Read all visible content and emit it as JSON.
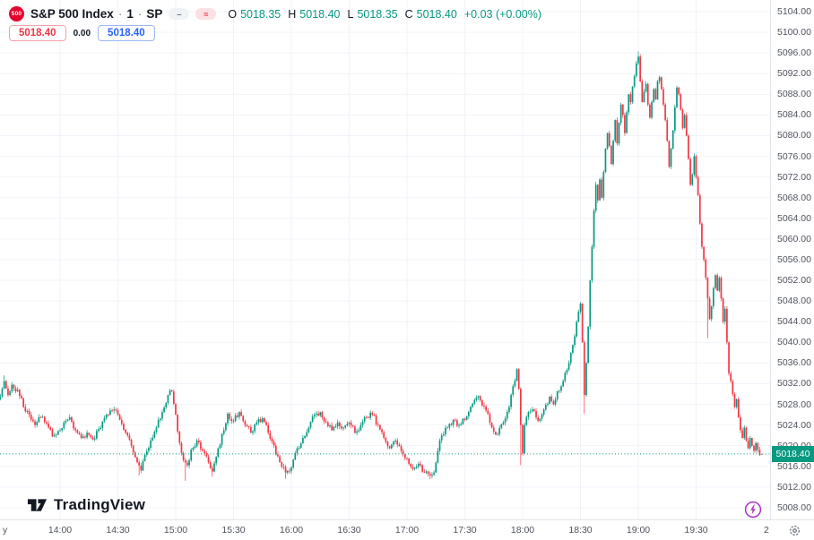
{
  "header": {
    "badge": "500",
    "symbol": "S&P 500 Index",
    "separator": "·",
    "interval": "1",
    "exchange": "SP",
    "flag_dash": "–",
    "flag_closed": "≈",
    "ohlc": {
      "open_label": "O",
      "open": "5018.35",
      "high_label": "H",
      "high": "5018.40",
      "low_label": "L",
      "low": "5018.35",
      "close_label": "C",
      "close": "5018.40",
      "change": "+0.03 (+0.00%)"
    },
    "sell_price": "5018.40",
    "spread": "0.00",
    "buy_price": "5018.40"
  },
  "watermark": "TradingView",
  "price_scale": {
    "current_label": "5018.40"
  },
  "chart_data": {
    "type": "candlestick",
    "symbol": "S&P 500 Index",
    "interval_minutes": 1,
    "last_price": 5018.4,
    "price_line": 5018.4,
    "last_candle": {
      "o": 5018.35,
      "h": 5018.4,
      "l": 5018.35,
      "c": 5018.4
    },
    "y_range": [
      5008,
      5104
    ],
    "y_tick_step": 4,
    "y_ticks": [
      "5104.00",
      "5100.00",
      "5096.00",
      "5092.00",
      "5088.00",
      "5084.00",
      "5080.00",
      "5076.00",
      "5072.00",
      "5068.00",
      "5064.00",
      "5060.00",
      "5056.00",
      "5052.00",
      "5048.00",
      "5044.00",
      "5040.00",
      "5036.00",
      "5032.00",
      "5028.00",
      "5024.00",
      "5020.00",
      "5016.00",
      "5012.00",
      "5008.00"
    ],
    "x_ticks": [
      "14:00",
      "14:30",
      "15:00",
      "15:30",
      "16:00",
      "16:30",
      "17:00",
      "17:30",
      "18:00",
      "18:30",
      "19:00",
      "19:30"
    ],
    "x_edge_labels": {
      "left": "y",
      "right": "2"
    },
    "session_high": 5096.3,
    "session_low": 5013.2,
    "price_path": [
      [
        "13:29",
        5029.5
      ],
      [
        "13:31",
        5032.5
      ],
      [
        "13:33",
        5029.8
      ],
      [
        "13:35",
        5031.8
      ],
      [
        "13:38",
        5030.8
      ],
      [
        "13:41",
        5027.5
      ],
      [
        "13:44",
        5026.0
      ],
      [
        "13:47",
        5024.0
      ],
      [
        "13:50",
        5025.5
      ],
      [
        "13:53",
        5024.3
      ],
      [
        "13:56",
        5021.8
      ],
      [
        "13:59",
        5022.8
      ],
      [
        "14:02",
        5024.5
      ],
      [
        "14:05",
        5025.5
      ],
      [
        "14:08",
        5023.0
      ],
      [
        "14:11",
        5021.5
      ],
      [
        "14:14",
        5022.5
      ],
      [
        "14:17",
        5021.2
      ],
      [
        "14:20",
        5023.2
      ],
      [
        "14:24",
        5026.0
      ],
      [
        "14:28",
        5027.0
      ],
      [
        "14:31",
        5025.0
      ],
      [
        "14:34",
        5022.5
      ],
      [
        "14:37",
        5020.0
      ],
      [
        "14:40",
        5016.8
      ],
      [
        "14:42",
        5015.2
      ],
      [
        "14:44",
        5018.2
      ],
      [
        "14:47",
        5021.0
      ],
      [
        "14:50",
        5023.5
      ],
      [
        "14:53",
        5026.5
      ],
      [
        "14:56",
        5029.8
      ],
      [
        "14:58",
        5030.5
      ],
      [
        "15:00",
        5026.0
      ],
      [
        "15:02",
        5020.5
      ],
      [
        "15:04",
        5017.2
      ],
      [
        "15:06",
        5016.2
      ],
      [
        "15:08",
        5019.2
      ],
      [
        "15:11",
        5021.0
      ],
      [
        "15:14",
        5019.0
      ],
      [
        "15:17",
        5016.8
      ],
      [
        "15:19",
        5015.0
      ],
      [
        "15:22",
        5019.5
      ],
      [
        "15:25",
        5023.0
      ],
      [
        "15:27",
        5026.2
      ],
      [
        "15:30",
        5024.8
      ],
      [
        "15:33",
        5026.5
      ],
      [
        "15:36",
        5024.0
      ],
      [
        "15:39",
        5022.5
      ],
      [
        "15:42",
        5024.5
      ],
      [
        "15:45",
        5025.3
      ],
      [
        "15:48",
        5022.5
      ],
      [
        "15:51",
        5020.0
      ],
      [
        "15:54",
        5016.8
      ],
      [
        "15:57",
        5014.8
      ],
      [
        "16:00",
        5015.8
      ],
      [
        "16:03",
        5019.5
      ],
      [
        "16:06",
        5021.5
      ],
      [
        "16:09",
        5023.5
      ],
      [
        "16:12",
        5026.0
      ],
      [
        "16:15",
        5026.5
      ],
      [
        "16:18",
        5024.5
      ],
      [
        "16:21",
        5023.0
      ],
      [
        "16:24",
        5024.5
      ],
      [
        "16:27",
        5023.5
      ],
      [
        "16:30",
        5024.5
      ],
      [
        "16:33",
        5022.5
      ],
      [
        "16:36",
        5024.0
      ],
      [
        "16:39",
        5025.5
      ],
      [
        "16:42",
        5026.0
      ],
      [
        "16:45",
        5024.0
      ],
      [
        "16:48",
        5021.5
      ],
      [
        "16:51",
        5019.5
      ],
      [
        "16:54",
        5021.0
      ],
      [
        "16:57",
        5019.0
      ],
      [
        "17:00",
        5017.5
      ],
      [
        "17:03",
        5015.5
      ],
      [
        "17:06",
        5016.5
      ],
      [
        "17:09",
        5014.8
      ],
      [
        "17:12",
        5014.2
      ],
      [
        "17:14",
        5014.8
      ],
      [
        "17:16",
        5019.0
      ],
      [
        "17:18",
        5022.0
      ],
      [
        "17:21",
        5023.5
      ],
      [
        "17:24",
        5025.0
      ],
      [
        "17:27",
        5024.0
      ],
      [
        "17:30",
        5025.0
      ],
      [
        "17:33",
        5027.5
      ],
      [
        "17:36",
        5029.3
      ],
      [
        "17:38",
        5028.8
      ],
      [
        "17:41",
        5026.8
      ],
      [
        "17:44",
        5023.5
      ],
      [
        "17:47",
        5022.2
      ],
      [
        "17:50",
        5024.5
      ],
      [
        "17:53",
        5027.5
      ],
      [
        "17:55",
        5031.5
      ],
      [
        "17:57",
        5034.8
      ],
      [
        "17:58",
        5031.0
      ],
      [
        "17:59",
        5024.0
      ],
      [
        "18:00",
        5018.5
      ],
      [
        "18:01",
        5024.0
      ],
      [
        "18:03",
        5026.5
      ],
      [
        "18:05",
        5027.0
      ],
      [
        "18:08",
        5024.8
      ],
      [
        "18:11",
        5027.0
      ],
      [
        "18:14",
        5029.5
      ],
      [
        "18:16",
        5028.0
      ],
      [
        "18:18",
        5030.5
      ],
      [
        "18:21",
        5032.5
      ],
      [
        "18:24",
        5036.0
      ],
      [
        "18:26",
        5039.5
      ],
      [
        "18:28",
        5044.0
      ],
      [
        "18:30",
        5047.5
      ],
      [
        "18:31",
        5040.0
      ],
      [
        "18:32",
        5029.8
      ],
      [
        "18:33",
        5036.0
      ],
      [
        "18:34",
        5043.0
      ],
      [
        "18:35",
        5052.0
      ],
      [
        "18:36",
        5058.5
      ],
      [
        "18:37",
        5065.5
      ],
      [
        "18:38",
        5070.5
      ],
      [
        "18:39",
        5067.5
      ],
      [
        "18:40",
        5071.5
      ],
      [
        "18:41",
        5068.0
      ],
      [
        "18:42",
        5073.0
      ],
      [
        "18:43",
        5077.5
      ],
      [
        "18:44",
        5080.5
      ],
      [
        "18:45",
        5078.0
      ],
      [
        "18:46",
        5074.5
      ],
      [
        "18:47",
        5079.0
      ],
      [
        "18:48",
        5083.0
      ],
      [
        "18:49",
        5078.5
      ],
      [
        "18:50",
        5082.5
      ],
      [
        "18:51",
        5086.0
      ],
      [
        "18:52",
        5084.0
      ],
      [
        "18:53",
        5080.5
      ],
      [
        "18:54",
        5084.5
      ],
      [
        "18:55",
        5088.0
      ],
      [
        "18:56",
        5086.5
      ],
      [
        "18:57",
        5089.5
      ],
      [
        "18:58",
        5091.5
      ],
      [
        "18:59",
        5094.0
      ],
      [
        "19:00",
        5095.3
      ],
      [
        "19:01",
        5090.5
      ],
      [
        "19:02",
        5086.5
      ],
      [
        "19:03",
        5088.5
      ],
      [
        "19:04",
        5090.0
      ],
      [
        "19:05",
        5086.0
      ],
      [
        "19:06",
        5083.5
      ],
      [
        "19:07",
        5086.5
      ],
      [
        "19:08",
        5089.0
      ],
      [
        "19:09",
        5087.0
      ],
      [
        "19:10",
        5090.5
      ],
      [
        "19:11",
        5091.3
      ],
      [
        "19:12",
        5089.0
      ],
      [
        "19:13",
        5086.0
      ],
      [
        "19:14",
        5083.0
      ],
      [
        "19:15",
        5079.0
      ],
      [
        "19:16",
        5074.0
      ],
      [
        "19:17",
        5077.5
      ],
      [
        "19:18",
        5081.0
      ],
      [
        "19:19",
        5085.5
      ],
      [
        "19:20",
        5089.3
      ],
      [
        "19:21",
        5088.0
      ],
      [
        "19:22",
        5085.0
      ],
      [
        "19:23",
        5081.5
      ],
      [
        "19:24",
        5084.0
      ],
      [
        "19:25",
        5080.0
      ],
      [
        "19:26",
        5075.5
      ],
      [
        "19:27",
        5070.5
      ],
      [
        "19:28",
        5072.5
      ],
      [
        "19:29",
        5076.0
      ],
      [
        "19:30",
        5072.0
      ],
      [
        "19:31",
        5068.5
      ],
      [
        "19:32",
        5063.0
      ],
      [
        "19:33",
        5058.5
      ],
      [
        "19:34",
        5056.0
      ],
      [
        "19:35",
        5052.5
      ],
      [
        "19:36",
        5048.5
      ],
      [
        "19:37",
        5044.5
      ],
      [
        "19:38",
        5047.0
      ],
      [
        "19:39",
        5050.5
      ],
      [
        "19:40",
        5053.0
      ],
      [
        "19:41",
        5050.0
      ],
      [
        "19:42",
        5052.5
      ],
      [
        "19:43",
        5048.5
      ],
      [
        "19:44",
        5044.0
      ],
      [
        "19:45",
        5046.5
      ],
      [
        "19:46",
        5040.0
      ],
      [
        "19:47",
        5034.0
      ],
      [
        "19:48",
        5032.5
      ],
      [
        "19:49",
        5030.0
      ],
      [
        "19:50",
        5027.5
      ],
      [
        "19:51",
        5029.0
      ],
      [
        "19:52",
        5025.5
      ],
      [
        "19:53",
        5023.0
      ],
      [
        "19:54",
        5021.5
      ],
      [
        "19:55",
        5023.5
      ],
      [
        "19:56",
        5021.0
      ],
      [
        "19:57",
        5019.5
      ],
      [
        "19:58",
        5021.5
      ],
      [
        "19:59",
        5020.0
      ],
      [
        "20:00",
        5019.0
      ],
      [
        "20:01",
        5020.5
      ],
      [
        "20:02",
        5019.2
      ],
      [
        "20:03",
        5018.2
      ],
      [
        "20:04",
        5018.4
      ]
    ],
    "spikes": [
      {
        "time": "13:31",
        "high": 5033.6
      },
      {
        "time": "14:41",
        "low": 5014.2
      },
      {
        "time": "15:05",
        "low": 5013.2
      },
      {
        "time": "15:19",
        "low": 5014.0
      },
      {
        "time": "15:57",
        "low": 5013.6
      },
      {
        "time": "17:12",
        "low": 5013.5
      },
      {
        "time": "17:59",
        "low": 5016.2
      },
      {
        "time": "18:32",
        "low": 5026.2
      },
      {
        "time": "19:00",
        "high": 5096.3
      },
      {
        "time": "19:36",
        "low": 5040.8
      }
    ],
    "colors": {
      "up": "#089981",
      "down": "#f23645",
      "grid": "#f0f3fa",
      "axis_text": "#50535e",
      "price_label_bg": "#089981",
      "sell": "#f23645",
      "buy": "#2962ff",
      "bolt": "#ae33c8"
    }
  }
}
